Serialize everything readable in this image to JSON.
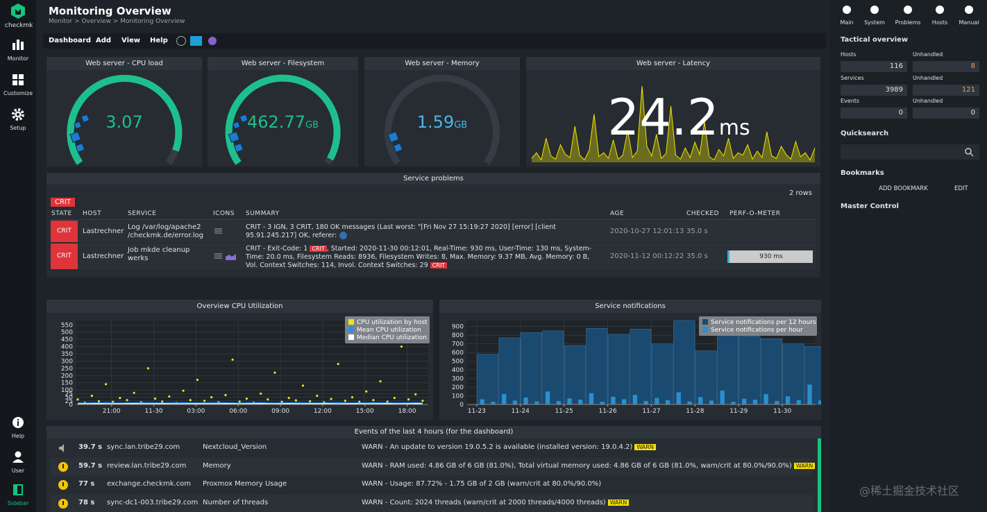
{
  "sidebar": {
    "brand": "checkmk",
    "nav": [
      "Monitor",
      "Customize",
      "Setup"
    ],
    "bottom": [
      "Help",
      "User",
      "Sidebar"
    ]
  },
  "header": {
    "title": "Monitoring Overview",
    "breadcrumb": "Monitor > Overview > Monitoring Overview",
    "menu": [
      "Dashboard",
      "Add",
      "View",
      "Help"
    ]
  },
  "gauges": [
    {
      "title": "Web server - CPU load",
      "value": "3.07"
    },
    {
      "title": "Web server - Filesystem",
      "value": "462.77",
      "unit": "GB"
    },
    {
      "title": "Web server - Memory",
      "value": "1.59",
      "unit": "GB"
    }
  ],
  "latency": {
    "title": "Web server - Latency",
    "value": "24.2",
    "unit": "ms",
    "color": "#f2e600",
    "values": [
      5,
      12,
      3,
      30,
      8,
      4,
      22,
      10,
      6,
      45,
      9,
      3,
      15,
      60,
      7,
      12,
      5,
      28,
      4,
      9,
      40,
      6,
      14,
      95,
      20,
      8,
      35,
      5,
      11,
      70,
      9,
      4,
      18,
      6,
      25,
      10,
      50,
      7,
      3,
      16,
      8,
      30,
      5,
      12,
      9,
      22,
      4,
      14,
      6,
      38,
      8,
      5,
      20,
      10,
      4,
      26,
      7,
      12,
      3,
      18
    ]
  },
  "service_problems": {
    "title": "Service problems",
    "count": "2 rows",
    "filter": "CRIT",
    "columns": [
      "STATE",
      "HOST",
      "SERVICE",
      "ICONS",
      "SUMMARY",
      "AGE",
      "CHECKED",
      "PERF-O-METER"
    ],
    "rows": [
      {
        "state": "CRIT",
        "host": "Lastrechner",
        "service": "Log /var/log/apache2 /checkmk.de/error.log",
        "summary": [
          {
            "text": "CRIT - 3 IGN, 3 CRIT, 180 OK messages (Last worst: \"[Fri Nov 27 15:19:27 2020] [error] [client 95.91.245.217] OK, referer:"
          }
        ],
        "age": "2020-10-27 12:01:13",
        "checked": "35.0 s"
      },
      {
        "state": "CRIT",
        "host": "Lastrechner",
        "service": "Job mkde cleanup werks",
        "summary": [
          {
            "text": "CRIT - Exit-Code: 1 "
          },
          {
            "badge": "CRIT"
          },
          {
            "text": ", Started: 2020-11-30 00:12:01, Real-Time: 930 ms, User-Time: 130 ms, System-Time: 20.0 ms, Filesystem Reads: 8936, Filesystem Writes: 8, Max. Memory: 9.37 MB, Avg. Memory: 0 B, Vol. Context Switches: 114, Invol. Context Switches: 29 "
          },
          {
            "badge": "CRIT"
          }
        ],
        "age": "2020-11-12 00:12:22",
        "checked": "35.0 s",
        "perf": "930 ms"
      }
    ]
  },
  "cpu_chart": {
    "type": "scatter",
    "title": "Overview CPU Utilization",
    "x": [
      18.6,
      19.1,
      19.6,
      20.1,
      20.6,
      21.1,
      21.6,
      22.1,
      22.6,
      23.1,
      23.6,
      24.1,
      24.6,
      25.1,
      25.6,
      26.1,
      26.6,
      27.1,
      27.6,
      28.1,
      28.6,
      29.1,
      29.6,
      30.1,
      30.6,
      31.1,
      31.6,
      32.1,
      32.6,
      33.1,
      33.6,
      34.1,
      34.6,
      35.1,
      35.6,
      36.1,
      36.6,
      37.1,
      37.6,
      38.1,
      38.6,
      39.1,
      39.6,
      40.1,
      40.6,
      41.1,
      41.6,
      42.1,
      42.6,
      43.1
    ],
    "series": [
      {
        "name": "CPU utilization by host",
        "color": "#e6e61a",
        "values": [
          35,
          12,
          60,
          22,
          140,
          18,
          45,
          30,
          80,
          15,
          250,
          40,
          20,
          55,
          10,
          95,
          30,
          170,
          25,
          50,
          15,
          65,
          310,
          20,
          40,
          12,
          75,
          35,
          220,
          18,
          45,
          28,
          130,
          22,
          60,
          15,
          38,
          280,
          25,
          50,
          18,
          90,
          30,
          160,
          20,
          45,
          400,
          35,
          70,
          25
        ]
      },
      {
        "name": "Mean CPU utilization",
        "color": "#1e90ff",
        "values": [
          10,
          9,
          11,
          10,
          12,
          10,
          9,
          11,
          10,
          12,
          11,
          10,
          9,
          10,
          11,
          12,
          10,
          9,
          11,
          10,
          12,
          11,
          10,
          9,
          10,
          11,
          12,
          10,
          9,
          11,
          10,
          12,
          11,
          10,
          9,
          10,
          11,
          12,
          10,
          9,
          11,
          10,
          12,
          11,
          10,
          9,
          10,
          11,
          12,
          10
        ]
      },
      {
        "name": "Median CPU utilization",
        "color": "#ffffff",
        "values": [
          5,
          4,
          5,
          6,
          5,
          4,
          5,
          5,
          6,
          5,
          4,
          5,
          6,
          5,
          4,
          5,
          5,
          6,
          5,
          4,
          5,
          6,
          5,
          4,
          5,
          5,
          6,
          5,
          4,
          5,
          6,
          5,
          4,
          5,
          5,
          6,
          5,
          4,
          5,
          6,
          5,
          4,
          5,
          5,
          6,
          5,
          4,
          5,
          6,
          5
        ]
      }
    ],
    "xlim": [
      18.5,
      43.5
    ],
    "xticks": [
      {
        "value": 21,
        "label": "21:00"
      },
      {
        "value": 24,
        "label": "11-30"
      },
      {
        "value": 27,
        "label": "03:00"
      },
      {
        "value": 30,
        "label": "06:00"
      },
      {
        "value": 33,
        "label": "09:00"
      },
      {
        "value": 36,
        "label": "12:00"
      },
      {
        "value": 39,
        "label": "15:00"
      },
      {
        "value": 42,
        "label": "18:00"
      }
    ],
    "ylim": [
      0,
      580
    ],
    "yticks": [
      0,
      25,
      50,
      75,
      100,
      150,
      200,
      250,
      300,
      350,
      400,
      450,
      500,
      550
    ],
    "grid": true,
    "legend": "top-right"
  },
  "notif_chart": {
    "type": "bar",
    "title": "Service notifications",
    "series": [
      {
        "name": "Service notifications per 12 hours",
        "color": "#1b4a70",
        "x": [
          23,
          23.5,
          24,
          24.5,
          25,
          25.5,
          26,
          26.5,
          27,
          27.5,
          28,
          28.5,
          29,
          29.5,
          30,
          30.5
        ],
        "values": [
          580,
          770,
          830,
          850,
          680,
          880,
          810,
          870,
          700,
          970,
          620,
          820,
          790,
          760,
          700,
          670
        ]
      },
      {
        "name": "Service notifications per hour",
        "color": "#2a8fd0",
        "x": [
          23,
          23.25,
          23.5,
          23.75,
          24,
          24.25,
          24.5,
          24.75,
          25,
          25.25,
          25.5,
          25.75,
          26,
          26.25,
          26.5,
          26.75,
          27,
          27.25,
          27.5,
          27.75,
          28,
          28.25,
          28.5,
          28.75,
          29,
          29.25,
          29.5,
          29.75,
          30,
          30.25,
          30.5,
          30.75
        ],
        "values": [
          60,
          30,
          120,
          45,
          80,
          35,
          150,
          40,
          70,
          55,
          130,
          30,
          90,
          60,
          110,
          40,
          75,
          50,
          140,
          35,
          85,
          45,
          160,
          30,
          65,
          55,
          120,
          40,
          95,
          50,
          230,
          45
        ]
      }
    ],
    "xlim": [
      22.78,
      30.76
    ],
    "xticks": [
      {
        "value": 23,
        "label": "11-23"
      },
      {
        "value": 24,
        "label": "11-24"
      },
      {
        "value": 25,
        "label": "11-25"
      },
      {
        "value": 26,
        "label": "11-26"
      },
      {
        "value": 27,
        "label": "11-27"
      },
      {
        "value": 28,
        "label": "11-28"
      },
      {
        "value": 29,
        "label": "11-29"
      },
      {
        "value": 30,
        "label": "11-30"
      }
    ],
    "ylim": [
      0,
      970
    ],
    "yticks": [
      0,
      100,
      200,
      300,
      400,
      500,
      600,
      700,
      800,
      900
    ],
    "grid": true,
    "legend": "top-right"
  },
  "events": {
    "title": "Events of the last 4 hours (for the dashboard)",
    "rows": [
      {
        "time": "39.7 s",
        "host": "sync.lan.tribe29.com",
        "service": "Nextcloud_Version",
        "text": "WARN - An update to version 19.0.5.2 is available (installed version: 19.0.4.2)",
        "badge": "WARN"
      },
      {
        "time": "59.7 s",
        "host": "review.lan.tribe29.com",
        "service": "Memory",
        "text": "WARN - RAM used: 4.86 GB of 6 GB (81.0%), Total virtual memory used: 4.86 GB of 6 GB (81.0%, warn/crit at 80.0%/90.0%)",
        "badge": "WARN"
      },
      {
        "time": "77 s",
        "host": "exchange.checkmk.com",
        "service": "Proxmox Memory Usage",
        "text": "WARN - Usage: 87.72% - 1.75 GB of 2 GB (warn/crit at 80.0%/90.0%)"
      },
      {
        "time": "78 s",
        "host": "sync-dc1-003.tribe29.com",
        "service": "Number of threads",
        "text": "WARN - Count: 2024 threads (warn/crit at 2000 threads/4000 threads)",
        "badge": "WARN"
      }
    ]
  },
  "right_panel": {
    "tabs": [
      "Main",
      "System",
      "Problems",
      "Hosts",
      "Manual"
    ],
    "tactical": {
      "title": "Tactical overview",
      "rows": [
        {
          "label": "Hosts",
          "value": 116,
          "unhandled_label": "Unhandled",
          "unhandled": 8
        },
        {
          "label": "Services",
          "value": 3989,
          "unhandled_label": "Unhandled",
          "unhandled": 121
        },
        {
          "label": "Events",
          "value": 0,
          "unhandled_label": "Unhandled",
          "unhandled": 0
        }
      ]
    },
    "quicksearch": "Quicksearch",
    "bookmarks": "Bookmarks",
    "add_bookmark": "ADD BOOKMARK",
    "edit": "EDIT",
    "master_control": "Master Control"
  },
  "watermark": "@稀土掘金技术社区"
}
